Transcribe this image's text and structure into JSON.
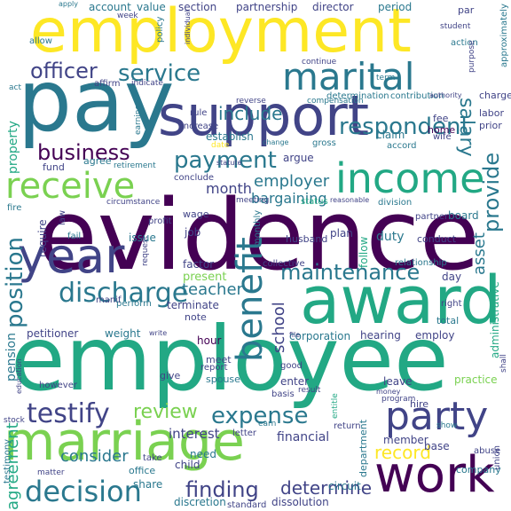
{
  "background": "#ffffff",
  "palette": {
    "c1": "#440154",
    "c2": "#414487",
    "c3": "#2a788e",
    "c4": "#22a884",
    "c5": "#7ad151",
    "c6": "#fde725"
  },
  "words": [
    {
      "text": "evidence",
      "color": "c1"
    },
    {
      "text": "employee",
      "color": "c4"
    },
    {
      "text": "pay",
      "color": "c3"
    },
    {
      "text": "employment",
      "color": "c6"
    },
    {
      "text": "support",
      "color": "c2"
    },
    {
      "text": "marriage",
      "color": "c5"
    },
    {
      "text": "award",
      "color": "c4"
    },
    {
      "text": "year",
      "color": "c2"
    },
    {
      "text": "work",
      "color": "c1"
    },
    {
      "text": "income",
      "color": "c4"
    },
    {
      "text": "marital",
      "color": "c3"
    },
    {
      "text": "receive",
      "color": "c5"
    },
    {
      "text": "party",
      "color": "c2"
    },
    {
      "text": "benefit",
      "color": "c3"
    },
    {
      "text": "maintenance",
      "color": "c3"
    },
    {
      "text": "testify",
      "color": "c2"
    },
    {
      "text": "discharge",
      "color": "c3"
    },
    {
      "text": "decision",
      "color": "c3"
    },
    {
      "text": "service",
      "color": "c3"
    },
    {
      "text": "respondent",
      "color": "c3"
    },
    {
      "text": "provide",
      "color": "c3"
    },
    {
      "text": "position",
      "color": "c3"
    },
    {
      "text": "officer",
      "color": "c2"
    },
    {
      "text": "payment",
      "color": "c3"
    },
    {
      "text": "business",
      "color": "c1"
    },
    {
      "text": "expense",
      "color": "c3"
    },
    {
      "text": "finding",
      "color": "c2"
    },
    {
      "text": "review",
      "color": "c5"
    },
    {
      "text": "record",
      "color": "c6"
    },
    {
      "text": "salary",
      "color": "c3"
    },
    {
      "text": "include",
      "color": "c3"
    },
    {
      "text": "employer",
      "color": "c3"
    },
    {
      "text": "school",
      "color": "c2"
    },
    {
      "text": "determine",
      "color": "c2"
    },
    {
      "text": "consider",
      "color": "c3"
    },
    {
      "text": "agreement",
      "color": "c4"
    },
    {
      "text": "month",
      "color": "c2"
    },
    {
      "text": "asset",
      "color": "c3"
    },
    {
      "text": "teacher",
      "color": "c3"
    },
    {
      "text": "bargaining",
      "color": "c3"
    },
    {
      "text": "interest",
      "color": "c2"
    },
    {
      "text": "account",
      "color": "c3"
    },
    {
      "text": "value",
      "color": "c3"
    },
    {
      "text": "section",
      "color": "c2"
    },
    {
      "text": "partnership",
      "color": "c2"
    },
    {
      "text": "director",
      "color": "c2"
    },
    {
      "text": "period",
      "color": "c3"
    },
    {
      "text": "hearing",
      "color": "c2"
    },
    {
      "text": "employ",
      "color": "c2"
    },
    {
      "text": "corporation",
      "color": "c3"
    },
    {
      "text": "financial",
      "color": "c2"
    },
    {
      "text": "duty",
      "color": "c3"
    },
    {
      "text": "pension",
      "color": "c3"
    },
    {
      "text": "property",
      "color": "c4"
    },
    {
      "text": "terminate",
      "color": "c2"
    },
    {
      "text": "factor",
      "color": "c2"
    },
    {
      "text": "petitioner",
      "color": "c2"
    },
    {
      "text": "weight",
      "color": "c3"
    },
    {
      "text": "perform",
      "color": "c3"
    },
    {
      "text": "note",
      "color": "c2"
    },
    {
      "text": "hour",
      "color": "c1"
    },
    {
      "text": "meet",
      "color": "c2"
    },
    {
      "text": "report",
      "color": "c2"
    },
    {
      "text": "spouse",
      "color": "c3"
    },
    {
      "text": "need",
      "color": "c3"
    },
    {
      "text": "child",
      "color": "c2"
    },
    {
      "text": "office",
      "color": "c3"
    },
    {
      "text": "share",
      "color": "c3"
    },
    {
      "text": "take",
      "color": "c2"
    },
    {
      "text": "member",
      "color": "c2"
    },
    {
      "text": "base",
      "color": "c2"
    },
    {
      "text": "circuit",
      "color": "c3"
    },
    {
      "text": "company",
      "color": "c3"
    },
    {
      "text": "dissolution",
      "color": "c2"
    },
    {
      "text": "discretion",
      "color": "c3"
    },
    {
      "text": "fee",
      "color": "c2"
    },
    {
      "text": "home",
      "color": "c1"
    },
    {
      "text": "claim",
      "color": "c3"
    },
    {
      "text": "fund",
      "color": "c2"
    },
    {
      "text": "agree",
      "color": "c3"
    },
    {
      "text": "issue",
      "color": "c3"
    },
    {
      "text": "job",
      "color": "c2"
    },
    {
      "text": "present",
      "color": "c5"
    },
    {
      "text": "plan",
      "color": "c2"
    },
    {
      "text": "husband",
      "color": "c2"
    },
    {
      "text": "conduct",
      "color": "c2"
    },
    {
      "text": "board",
      "color": "c3"
    },
    {
      "text": "leave",
      "color": "c2"
    },
    {
      "text": "give",
      "color": "c2"
    },
    {
      "text": "however",
      "color": "c2"
    },
    {
      "text": "testimony",
      "color": "c3"
    },
    {
      "text": "action",
      "color": "c3"
    },
    {
      "text": "argue",
      "color": "c2"
    },
    {
      "text": "establish",
      "color": "c3"
    },
    {
      "text": "wage",
      "color": "c2"
    },
    {
      "text": "fail",
      "color": "c3"
    },
    {
      "text": "require",
      "color": "c2"
    },
    {
      "text": "day",
      "color": "c2"
    },
    {
      "text": "total",
      "color": "c3"
    },
    {
      "text": "right",
      "color": "c2"
    },
    {
      "text": "practice",
      "color": "c5"
    },
    {
      "text": "hire",
      "color": "c2"
    },
    {
      "text": "program",
      "color": "c2"
    },
    {
      "text": "enter",
      "color": "c2"
    },
    {
      "text": "good",
      "color": "c2"
    },
    {
      "text": "basis",
      "color": "c2"
    },
    {
      "text": "return",
      "color": "c2"
    },
    {
      "text": "letter",
      "color": "c2"
    },
    {
      "text": "standard",
      "color": "c2"
    },
    {
      "text": "union",
      "color": "c2"
    },
    {
      "text": "show",
      "color": "c3"
    },
    {
      "text": "relationship",
      "color": "c3"
    },
    {
      "text": "administrative",
      "color": "c4"
    },
    {
      "text": "department",
      "color": "c3"
    },
    {
      "text": "follow",
      "color": "c4"
    },
    {
      "text": "monthly",
      "color": "c3"
    },
    {
      "text": "division",
      "color": "c3"
    },
    {
      "text": "collective",
      "color": "c2"
    },
    {
      "text": "conclude",
      "color": "c2"
    },
    {
      "text": "wife",
      "color": "c2"
    },
    {
      "text": "prior",
      "color": "c2"
    },
    {
      "text": "labor",
      "color": "c2"
    },
    {
      "text": "charge",
      "color": "c2"
    },
    {
      "text": "determination",
      "color": "c3"
    },
    {
      "text": "contribution",
      "color": "c3"
    },
    {
      "text": "compensation",
      "color": "c3"
    },
    {
      "text": "continue",
      "color": "c2"
    },
    {
      "text": "term",
      "color": "c3"
    },
    {
      "text": "affirm",
      "color": "c2"
    },
    {
      "text": "indicate",
      "color": "c2"
    },
    {
      "text": "rule",
      "color": "c2"
    },
    {
      "text": "increase",
      "color": "c2"
    },
    {
      "text": "gross",
      "color": "c3"
    },
    {
      "text": "change",
      "color": "c3"
    },
    {
      "text": "accord",
      "color": "c3"
    },
    {
      "text": "manif",
      "color": "c2"
    },
    {
      "text": "write",
      "color": "c2"
    },
    {
      "text": "result",
      "color": "c2"
    },
    {
      "text": "profit",
      "color": "c2"
    },
    {
      "text": "request",
      "color": "c2"
    },
    {
      "text": "circumstance",
      "color": "c2"
    },
    {
      "text": "reasonable",
      "color": "c2"
    },
    {
      "text": "partner",
      "color": "c2"
    },
    {
      "text": "status",
      "color": "c4"
    },
    {
      "text": "file",
      "color": "c2"
    },
    {
      "text": "entitle",
      "color": "c4"
    },
    {
      "text": "earn",
      "color": "c3"
    },
    {
      "text": "money",
      "color": "c2"
    },
    {
      "text": "abuse",
      "color": "c2"
    },
    {
      "text": "apply",
      "color": "c3"
    },
    {
      "text": "week",
      "color": "c2"
    },
    {
      "text": "policy",
      "color": "c3"
    },
    {
      "text": "allow",
      "color": "c3"
    },
    {
      "text": "retirement",
      "color": "c3"
    },
    {
      "text": "earning",
      "color": "c3"
    },
    {
      "text": "education",
      "color": "c2"
    },
    {
      "text": "purpose",
      "color": "c2"
    },
    {
      "text": "student",
      "color": "c2"
    },
    {
      "text": "statute",
      "color": "c2"
    },
    {
      "text": "approximately",
      "color": "c3"
    },
    {
      "text": "law",
      "color": "c2"
    },
    {
      "text": "fire",
      "color": "c3"
    },
    {
      "text": "act",
      "color": "c3"
    },
    {
      "text": "stock",
      "color": "c2"
    },
    {
      "text": "matter",
      "color": "c2"
    },
    {
      "text": "shall",
      "color": "c2"
    },
    {
      "text": "individual",
      "color": "c2"
    },
    {
      "text": "date",
      "color": "c6"
    },
    {
      "text": "meeting",
      "color": "c2"
    },
    {
      "text": "authority",
      "color": "c2"
    },
    {
      "text": "reverse",
      "color": "c2"
    },
    {
      "text": "par",
      "color": "c2"
    }
  ]
}
